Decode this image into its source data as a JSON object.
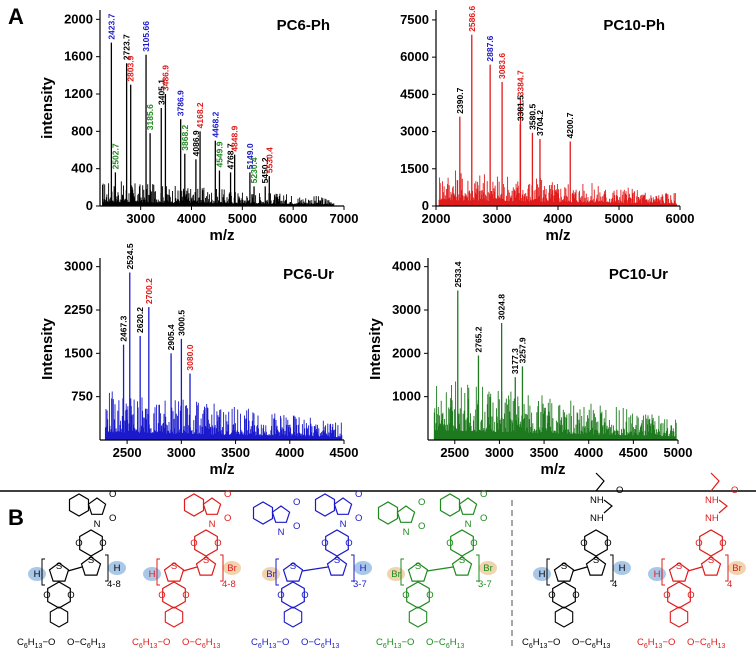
{
  "figure": {
    "panel_a_label": "A",
    "panel_b_label": "B"
  },
  "chart_data": [
    {
      "type": "bar",
      "id": "pc6ph",
      "title": "PC6-Ph",
      "xlabel": "m/z",
      "ylabel": "intensity",
      "xlim": [
        2200,
        7000
      ],
      "ylim": [
        0,
        2100
      ],
      "xticks": [
        3000,
        4000,
        5000,
        6000,
        7000
      ],
      "yticks": [
        0,
        400,
        800,
        1200,
        1600,
        2000
      ],
      "color": "#000000",
      "peaks": [
        {
          "x": 2423.7,
          "y": 1750,
          "label": "2423.7",
          "lc": "#1a1acc"
        },
        {
          "x": 2502.7,
          "y": 360,
          "label": "2502.7",
          "lc": "#1e8a1e"
        },
        {
          "x": 2723.7,
          "y": 1530,
          "label": "2723.7",
          "lc": "#000000"
        },
        {
          "x": 2803.9,
          "y": 1300,
          "label": "2803.9",
          "lc": "#e01b1b"
        },
        {
          "x": 3105.66,
          "y": 1620,
          "label": "3105.66",
          "lc": "#1a1acc"
        },
        {
          "x": 3185.6,
          "y": 780,
          "label": "3185.6",
          "lc": "#1e8a1e"
        },
        {
          "x": 3405.1,
          "y": 1050,
          "label": "3405.1",
          "lc": "#000000"
        },
        {
          "x": 3486.9,
          "y": 1200,
          "label": "3486.9",
          "lc": "#e01b1b"
        },
        {
          "x": 3786.9,
          "y": 930,
          "label": "3786.9",
          "lc": "#1a1acc"
        },
        {
          "x": 3868.2,
          "y": 560,
          "label": "3868.2",
          "lc": "#1e8a1e"
        },
        {
          "x": 4086.9,
          "y": 500,
          "label": "4086.9",
          "lc": "#000000"
        },
        {
          "x": 4168.2,
          "y": 800,
          "label": "4168.2",
          "lc": "#e01b1b"
        },
        {
          "x": 4468.2,
          "y": 700,
          "label": "4468.2",
          "lc": "#1a1acc"
        },
        {
          "x": 4549.9,
          "y": 380,
          "label": "4549.9",
          "lc": "#1e8a1e"
        },
        {
          "x": 4768.7,
          "y": 360,
          "label": "4768.7",
          "lc": "#000000"
        },
        {
          "x": 4848.9,
          "y": 550,
          "label": "4848.9",
          "lc": "#e01b1b"
        },
        {
          "x": 5149.0,
          "y": 360,
          "label": "5149.0",
          "lc": "#1a1acc"
        },
        {
          "x": 5230.4,
          "y": 210,
          "label": "5230.4",
          "lc": "#1e8a1e"
        },
        {
          "x": 5450.2,
          "y": 210,
          "label": "5450.2",
          "lc": "#000000"
        },
        {
          "x": 5530.4,
          "y": 320,
          "label": "5530.4",
          "lc": "#e01b1b"
        }
      ],
      "noise_range": [
        2250,
        6800
      ],
      "noise_max": 280
    },
    {
      "type": "bar",
      "id": "pc10ph",
      "title": "PC10-Ph",
      "xlabel": "m/z",
      "ylabel": "",
      "xlim": [
        2000,
        6000
      ],
      "ylim": [
        0,
        7900
      ],
      "xticks": [
        2000,
        3000,
        4000,
        5000,
        6000
      ],
      "yticks": [
        0,
        1500,
        3000,
        4500,
        6000,
        7500
      ],
      "color": "#e01b1b",
      "peaks": [
        {
          "x": 2390.7,
          "y": 3600,
          "label": "2390.7",
          "lc": "#000000"
        },
        {
          "x": 2586.6,
          "y": 6900,
          "label": "2586.6",
          "lc": "#e01b1b"
        },
        {
          "x": 2887.6,
          "y": 5700,
          "label": "2887.6",
          "lc": "#1a1acc"
        },
        {
          "x": 3083.6,
          "y": 5000,
          "label": "3083.6",
          "lc": "#e01b1b"
        },
        {
          "x": 3384.7,
          "y": 4300,
          "label": "3384.7",
          "lc": "#e01b1b"
        },
        {
          "x": 3580.5,
          "y": 2950,
          "label": "3580.5",
          "lc": "#000000"
        },
        {
          "x": 3704.2,
          "y": 2700,
          "label": "3704.2",
          "lc": "#000000"
        },
        {
          "x": 3381.5,
          "y": 3300,
          "label": "3381.5",
          "lc": "#000000"
        },
        {
          "x": 4200.7,
          "y": 2600,
          "label": "4200.7",
          "lc": "#000000"
        }
      ],
      "noise_range": [
        2050,
        5950
      ],
      "noise_max": 1600
    },
    {
      "type": "bar",
      "id": "pc6ur",
      "title": "PC6-Ur",
      "xlabel": "m/z",
      "ylabel": "Intensity",
      "xlim": [
        2250,
        4500
      ],
      "ylim": [
        0,
        3150
      ],
      "xticks": [
        2500,
        3000,
        3500,
        4000,
        4500
      ],
      "yticks": [
        750,
        1500,
        2250,
        3000
      ],
      "color": "#1a1acc",
      "peaks": [
        {
          "x": 2467.3,
          "y": 1650,
          "label": "2467.3",
          "lc": "#000000"
        },
        {
          "x": 2524.5,
          "y": 2900,
          "label": "2524.5",
          "lc": "#000000"
        },
        {
          "x": 2620.2,
          "y": 1800,
          "label": "2620.2",
          "lc": "#000000"
        },
        {
          "x": 2700.2,
          "y": 2300,
          "label": "2700.2",
          "lc": "#e01b1b"
        },
        {
          "x": 2905.4,
          "y": 1500,
          "label": "2905.4",
          "lc": "#000000"
        },
        {
          "x": 3000.5,
          "y": 1750,
          "label": "3000.5",
          "lc": "#000000"
        },
        {
          "x": 3080.0,
          "y": 1150,
          "label": "3080.0",
          "lc": "#e01b1b"
        }
      ],
      "noise_range": [
        2300,
        4480
      ],
      "noise_max": 900
    },
    {
      "type": "bar",
      "id": "pc10ur",
      "title": "PC10-Ur",
      "xlabel": "m/z",
      "ylabel": "Intensity",
      "xlim": [
        2200,
        5000
      ],
      "ylim": [
        0,
        4200
      ],
      "xticks": [
        2500,
        3000,
        3500,
        4000,
        4500,
        5000
      ],
      "yticks": [
        1000,
        2000,
        3000,
        4000
      ],
      "color": "#1e7a1e",
      "peaks": [
        {
          "x": 2533.4,
          "y": 3450,
          "label": "2533.4",
          "lc": "#000000"
        },
        {
          "x": 2765.2,
          "y": 1950,
          "label": "2765.2",
          "lc": "#000000"
        },
        {
          "x": 3024.8,
          "y": 2700,
          "label": "3024.8",
          "lc": "#000000"
        },
        {
          "x": 3177.3,
          "y": 1450,
          "label": "3177.3",
          "lc": "#000000"
        },
        {
          "x": 3257.9,
          "y": 1700,
          "label": "3257.9",
          "lc": "#000000"
        }
      ],
      "noise_range": [
        2270,
        4980
      ],
      "noise_max": 1500
    }
  ],
  "structures": {
    "end_h": "H",
    "end_br": "Br",
    "o": "O",
    "n": "N",
    "s": "S",
    "nh": "NH",
    "repeat_labels": [
      "4-8",
      "4-8",
      "3-7",
      "3-7",
      "4",
      "4"
    ],
    "c6": "C",
    "c6_sub": "6",
    "h13": "H",
    "h13_sub": "13",
    "alkoxy_a": "O",
    "colors": [
      "#000000",
      "#e01b1b",
      "#1a1acc",
      "#1e8a1e",
      "#000000",
      "#e01b1b"
    ]
  }
}
